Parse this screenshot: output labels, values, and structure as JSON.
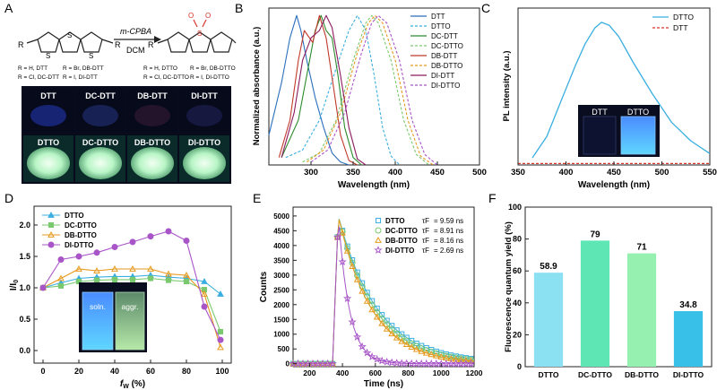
{
  "panel_labels": [
    "A",
    "B",
    "C",
    "D",
    "E",
    "F"
  ],
  "panelA": {
    "reagent": "m-CPBA",
    "solvent": "DCM",
    "left_legend": [
      "R = H,  DTT",
      "R = Br,  DB-DTT",
      "R = Cl,  DC-DTT",
      "R = I,  DI-DTT"
    ],
    "right_legend": [
      "R = H,  DTTO",
      "R = Br,  DB-DTTO",
      "R = Cl,  DC-DTTO",
      "R = I,  DI-DTTO"
    ],
    "sub_r": "R",
    "atom_s": "S",
    "atom_o": "O",
    "photo_top": [
      "DTT",
      "DC-DTT",
      "DB-DTT",
      "DI-DTT"
    ],
    "photo_bottom": [
      "DTTO",
      "DC-DTTO",
      "DB-DTTO",
      "DI-DTTO"
    ]
  },
  "colors": {
    "DTT": "#2a6ebb",
    "DTTO": "#3aaee0",
    "DC-DTT": "#2e8b2e",
    "DC-DTTO": "#7bc96f",
    "DB-DTT": "#c0392b",
    "DB-DTTO": "#e69a1e",
    "DI-DTT": "#8b1a5e",
    "DI-DTTO": "#a855c8"
  },
  "chart_data": [
    {
      "panel": "B",
      "type": "line",
      "xlabel": "Wavelength (nm)",
      "ylabel": "Normalized absorbance (a.u.)",
      "xlim": [
        250,
        500
      ],
      "xticks": [
        300,
        350,
        400,
        450,
        500
      ],
      "series": [
        {
          "name": "DTT",
          "style": "solid",
          "x": [
            250,
            265,
            275,
            283,
            288,
            295,
            305,
            315,
            325,
            335,
            345
          ],
          "y": [
            0.2,
            0.55,
            0.85,
            1.0,
            0.9,
            0.7,
            0.45,
            0.25,
            0.08,
            0.02,
            0.0
          ]
        },
        {
          "name": "DTTO",
          "style": "dash",
          "x": [
            270,
            290,
            310,
            330,
            345,
            355,
            365,
            375,
            385,
            395,
            405
          ],
          "y": [
            0.05,
            0.1,
            0.3,
            0.65,
            0.9,
            1.0,
            0.9,
            0.6,
            0.25,
            0.06,
            0.0
          ]
        },
        {
          "name": "DC-DTT",
          "style": "solid",
          "x": [
            265,
            285,
            295,
            305,
            312,
            318,
            325,
            332,
            340,
            350,
            360
          ],
          "y": [
            0.05,
            0.3,
            0.6,
            0.9,
            1.0,
            0.9,
            0.85,
            0.6,
            0.25,
            0.05,
            0.0
          ]
        },
        {
          "name": "DC-DTTO",
          "style": "dash",
          "x": [
            290,
            310,
            330,
            350,
            365,
            372,
            380,
            395,
            410,
            425,
            440
          ],
          "y": [
            0.02,
            0.08,
            0.3,
            0.7,
            0.95,
            1.0,
            0.95,
            0.7,
            0.3,
            0.07,
            0.0
          ]
        },
        {
          "name": "DB-DTT",
          "style": "solid",
          "x": [
            262,
            275,
            285,
            292,
            302,
            310,
            318,
            326,
            335,
            345,
            355
          ],
          "y": [
            0.05,
            0.3,
            0.7,
            0.9,
            0.82,
            1.0,
            0.85,
            0.55,
            0.2,
            0.03,
            0.0
          ]
        },
        {
          "name": "DB-DTTO",
          "style": "dash",
          "x": [
            295,
            315,
            335,
            355,
            368,
            376,
            385,
            400,
            415,
            430,
            445
          ],
          "y": [
            0.02,
            0.1,
            0.35,
            0.75,
            0.95,
            1.0,
            0.95,
            0.7,
            0.3,
            0.06,
            0.0
          ]
        },
        {
          "name": "DI-DTT",
          "style": "solid",
          "x": [
            265,
            280,
            290,
            300,
            310,
            318,
            325,
            335,
            345,
            355,
            365
          ],
          "y": [
            0.05,
            0.35,
            0.7,
            0.85,
            0.9,
            1.0,
            0.92,
            0.6,
            0.25,
            0.04,
            0.0
          ]
        },
        {
          "name": "DI-DTTO",
          "style": "dash",
          "x": [
            300,
            320,
            340,
            360,
            372,
            380,
            390,
            405,
            420,
            435,
            450
          ],
          "y": [
            0.02,
            0.1,
            0.35,
            0.75,
            0.95,
            1.0,
            0.95,
            0.7,
            0.3,
            0.07,
            0.0
          ]
        }
      ]
    },
    {
      "panel": "C",
      "type": "line",
      "xlabel": "Wavelength (nm)",
      "ylabel": "PL intensity (a.u.)",
      "xlim": [
        350,
        550
      ],
      "xticks": [
        350,
        400,
        450,
        500,
        550
      ],
      "inset_labels": [
        "DTT",
        "DTTO"
      ],
      "series": [
        {
          "name": "DTTO",
          "style": "solid",
          "color": "#3aaee0",
          "x": [
            365,
            380,
            395,
            410,
            420,
            430,
            437,
            445,
            455,
            470,
            490,
            510,
            530,
            550
          ],
          "y": [
            0.05,
            0.2,
            0.45,
            0.7,
            0.85,
            0.96,
            1.0,
            0.98,
            0.9,
            0.72,
            0.5,
            0.3,
            0.17,
            0.08
          ]
        },
        {
          "name": "DTT",
          "style": "dash",
          "color": "#d9342b",
          "x": [
            350,
            550
          ],
          "y": [
            0.01,
            0.01
          ]
        }
      ]
    },
    {
      "panel": "D",
      "type": "line",
      "xlabel": "f_W (%)",
      "ylabel": "I/I0",
      "xlim": [
        -5,
        105
      ],
      "ylim": [
        -0.2,
        2.3
      ],
      "xticks": [
        0,
        20,
        40,
        60,
        80,
        100
      ],
      "yticks": [
        0.0,
        0.5,
        1.0,
        1.5,
        2.0
      ],
      "inset_labels": [
        "soln.",
        "aggr."
      ],
      "series": [
        {
          "name": "DTTO",
          "marker": "triangle",
          "x": [
            0,
            10,
            20,
            30,
            40,
            50,
            60,
            70,
            80,
            90,
            99
          ],
          "y": [
            1.0,
            1.08,
            1.15,
            1.17,
            1.18,
            1.18,
            1.2,
            1.17,
            1.15,
            1.1,
            0.9
          ]
        },
        {
          "name": "DC-DTTO",
          "marker": "square",
          "x": [
            0,
            10,
            20,
            30,
            40,
            50,
            60,
            70,
            80,
            90,
            99
          ],
          "y": [
            1.0,
            1.03,
            1.1,
            1.12,
            1.13,
            1.13,
            1.15,
            1.12,
            1.1,
            0.97,
            0.3
          ]
        },
        {
          "name": "DB-DTTO",
          "marker": "triangle-open",
          "x": [
            0,
            10,
            20,
            30,
            40,
            50,
            60,
            70,
            80,
            90,
            99
          ],
          "y": [
            1.0,
            1.15,
            1.3,
            1.27,
            1.3,
            1.3,
            1.3,
            1.22,
            1.2,
            0.9,
            0.05
          ]
        },
        {
          "name": "DI-DTTO",
          "marker": "circle",
          "x": [
            0,
            10,
            20,
            30,
            40,
            50,
            60,
            70,
            80,
            90,
            99
          ],
          "y": [
            1.0,
            1.45,
            1.5,
            1.56,
            1.65,
            1.73,
            1.82,
            1.9,
            1.75,
            0.7,
            0.17
          ]
        }
      ]
    },
    {
      "panel": "E",
      "type": "line",
      "xlabel": "Time (ns)",
      "ylabel": "Counts",
      "xlim": [
        100,
        1200
      ],
      "ylim": [
        -100,
        5300
      ],
      "xticks": [
        200,
        400,
        600,
        800,
        1000,
        1200
      ],
      "yticks": [
        0,
        500,
        1000,
        1500,
        2000,
        2500,
        3000,
        3500,
        4000,
        4500,
        5000
      ],
      "series": [
        {
          "name": "DTTO",
          "tau": "= 9.59 ns",
          "marker": "square-open",
          "decay": 9.59
        },
        {
          "name": "DC-DTTO",
          "tau": "= 8.91 ns",
          "marker": "circle-open",
          "decay": 8.91
        },
        {
          "name": "DB-DTTO",
          "tau": "= 8.16 ns",
          "marker": "triangle-open",
          "decay": 8.16
        },
        {
          "name": "DI-DTTO",
          "tau": "= 2.69 ns",
          "marker": "star",
          "decay": 2.69
        }
      ],
      "tau_symbol": "τF"
    },
    {
      "panel": "F",
      "type": "bar",
      "ylabel": "Fluorescence quantum yield (%)",
      "ylim": [
        0,
        100
      ],
      "yticks": [
        0,
        20,
        40,
        60,
        80,
        100
      ],
      "categories": [
        "DTTO",
        "DC-DTTO",
        "DB-DTTO",
        "DI-DTTO"
      ],
      "values": [
        58.9,
        79,
        71,
        34.8
      ],
      "value_labels": [
        "58.9",
        "79",
        "71",
        "34.8"
      ],
      "bar_colors": [
        "#8be0f2",
        "#5ee6b5",
        "#96f0b0",
        "#38c0e8"
      ]
    }
  ]
}
